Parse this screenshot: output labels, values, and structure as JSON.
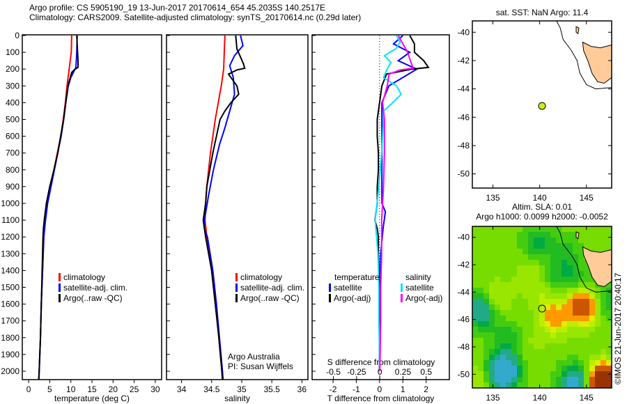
{
  "title_line1": "Argo profile: CS 5905190_19 13-Jun-2017 20170614_654 45.2035S 140.2517E",
  "title_line2": "Climatology: CARS2009. Satellite-adjusted climatology: synTS_20170614.nc (0.29d later)",
  "credit": "Argo Australia",
  "pi": "PI: Susan Wijffels",
  "stamp": "©IMOS 21-Jun-2017 20:40:17",
  "colors": {
    "climatology": "#ff0000",
    "satellite": "#0000ff",
    "argo": "#000000",
    "sal_satellite": "#00e5ff",
    "sal_argo": "#ff00ff",
    "land": "#ffcc99"
  },
  "chart_data": [
    {
      "type": "line",
      "name": "temperature",
      "xlabel": "temperature (deg C)",
      "xlim": [
        -1.5,
        31.5
      ],
      "ylim": [
        2050,
        0
      ],
      "xticks": [
        "0",
        "5",
        "10",
        "15",
        "20",
        "25",
        "30"
      ],
      "xtickvals": [
        0,
        5,
        10,
        15,
        20,
        25,
        30
      ],
      "yticks": [
        "0",
        "100",
        "200",
        "300",
        "400",
        "500",
        "600",
        "700",
        "800",
        "900",
        "1000",
        "1100",
        "1200",
        "1300",
        "1400",
        "1500",
        "1600",
        "1700",
        "1800",
        "1900",
        "2000"
      ],
      "legend": [
        "climatology",
        "satellite-adj. clim.",
        "Argo(..raw -QC)"
      ],
      "series": [
        {
          "name": "climatology",
          "color": "#ff0000",
          "depth": [
            0,
            100,
            200,
            300,
            400,
            500,
            600,
            700,
            800,
            900,
            1000,
            1100,
            1200,
            1400,
            1600,
            1800,
            2000,
            2050
          ],
          "values": [
            10.2,
            10.1,
            9.6,
            9.1,
            8.7,
            8.2,
            7.6,
            6.8,
            6,
            5.2,
            4.4,
            3.9,
            3.6,
            3.3,
            3,
            2.8,
            2.5,
            2.4
          ]
        },
        {
          "name": "satellite-adj. clim.",
          "color": "#0000ff",
          "depth": [
            0,
            100,
            190,
            250,
            300,
            400,
            500,
            600,
            700,
            800,
            900,
            1000,
            1100,
            1200,
            1400,
            1600,
            1800,
            2000,
            2050
          ],
          "values": [
            11.5,
            11.4,
            11.2,
            10,
            9.4,
            8.8,
            8.3,
            7.7,
            6.9,
            6.1,
            5.3,
            4.5,
            4,
            3.6,
            3.3,
            3,
            2.8,
            2.5,
            2.4
          ]
        },
        {
          "name": "Argo(..raw -QC)",
          "color": "#000000",
          "depth": [
            0,
            50,
            100,
            150,
            190,
            200,
            220,
            300,
            400,
            500,
            600,
            700,
            800,
            900,
            1000,
            1100,
            1150,
            1200,
            1400,
            1600,
            1800,
            2000,
            2050
          ],
          "values": [
            11.4,
            11.5,
            11.6,
            11.7,
            11.7,
            11.0,
            10.2,
            9.3,
            8.8,
            8.3,
            7.6,
            6.9,
            6.0,
            5.0,
            4.2,
            3.7,
            3.5,
            3.4,
            3.2,
            3.0,
            2.8,
            2.5,
            2.4
          ]
        }
      ]
    },
    {
      "type": "line",
      "name": "salinity",
      "xlabel": "salinity",
      "xlim": [
        33.75,
        36.1
      ],
      "ylim": [
        2050,
        0
      ],
      "xticks": [
        "34",
        "34.5",
        "35",
        "35.5",
        "36"
      ],
      "xtickvals": [
        34,
        34.5,
        35,
        35.5,
        36
      ],
      "legend": [
        "climatology",
        "satellite-adj. clim.",
        "Argo(..raw -QC)"
      ],
      "series": [
        {
          "name": "climatology",
          "color": "#ff0000",
          "depth": [
            0,
            100,
            200,
            300,
            400,
            500,
            600,
            700,
            800,
            900,
            1000,
            1100,
            1200,
            1400,
            1600,
            1800,
            2000,
            2050
          ],
          "values": [
            34.72,
            34.71,
            34.7,
            34.66,
            34.61,
            34.56,
            34.52,
            34.48,
            34.45,
            34.42,
            34.4,
            34.39,
            34.42,
            34.5,
            34.57,
            34.62,
            34.67,
            34.68
          ]
        },
        {
          "name": "satellite-adj. clim.",
          "color": "#0000ff",
          "depth": [
            0,
            60,
            120,
            180,
            250,
            350,
            450,
            550,
            650,
            800,
            950,
            1100,
            1150,
            1200,
            1400,
            1600,
            1800,
            2000,
            2050
          ],
          "values": [
            34.98,
            35.02,
            34.88,
            34.8,
            34.86,
            34.88,
            34.8,
            34.72,
            34.63,
            34.53,
            34.45,
            34.38,
            34.38,
            34.43,
            34.52,
            34.58,
            34.63,
            34.68,
            34.69
          ]
        },
        {
          "name": "Argo(..raw -QC)",
          "color": "#000000",
          "depth": [
            0,
            80,
            120,
            170,
            195,
            205,
            230,
            300,
            350,
            400,
            450,
            500,
            600,
            700,
            800,
            900,
            1000,
            1100,
            1200,
            1300,
            1400,
            1600,
            1800,
            2000,
            2050
          ],
          "values": [
            34.9,
            34.92,
            34.97,
            35.03,
            35.05,
            34.92,
            34.78,
            34.92,
            34.95,
            34.82,
            34.72,
            34.64,
            34.58,
            34.52,
            34.47,
            34.42,
            34.4,
            34.36,
            34.4,
            34.45,
            34.5,
            34.56,
            34.62,
            34.67,
            34.68
          ]
        }
      ]
    },
    {
      "type": "line",
      "name": "difference",
      "xlabel": "T difference from climatology",
      "x2label": "S difference from climatology",
      "xlim": [
        -2.9,
        3.0
      ],
      "x2lim": [
        -0.73,
        0.75
      ],
      "xticks": [
        "-2",
        "-1",
        "0",
        "1",
        "2"
      ],
      "xtickvals": [
        -2,
        -1,
        0,
        1,
        2
      ],
      "x2ticks": [
        "-0.5",
        "-0.25",
        "0",
        "0.25",
        "0.5"
      ],
      "x2tickvals": [
        -0.5,
        -0.25,
        0,
        0.25,
        0.5
      ],
      "legend": {
        "temperature_title": "temperature",
        "temperature": [
          "satellite",
          "Argo(-adj)"
        ],
        "salinity_title": "salinity",
        "salinity": [
          "satellite",
          "Argo(-adj)"
        ]
      },
      "series": [
        {
          "name": "T satellite",
          "axis": "T",
          "color": "#0000ff",
          "depth": [
            0,
            50,
            100,
            150,
            200,
            300,
            400,
            500,
            700,
            900,
            1000,
            1050,
            1150,
            1300,
            1600,
            2000
          ],
          "values": [
            1.0,
            0.6,
            1.3,
            0.8,
            1.6,
            0.4,
            0.1,
            0.1,
            0.1,
            0.1,
            0.1,
            0.25,
            0.15,
            0.05,
            0.0,
            0.0
          ]
        },
        {
          "name": "T Argo(-adj)",
          "axis": "T",
          "color": "#000000",
          "depth": [
            0,
            50,
            100,
            150,
            190,
            200,
            230,
            300,
            400,
            500,
            600,
            700,
            800,
            900,
            1000,
            1100,
            1150,
            1200,
            1300,
            1500,
            1700,
            2000
          ],
          "values": [
            1.3,
            1.5,
            1.5,
            1.9,
            2.1,
            1.4,
            0.3,
            0.1,
            0.0,
            -0.1,
            -0.1,
            -0.05,
            -0.05,
            -0.1,
            -0.1,
            -0.2,
            -0.1,
            -0.05,
            -0.05,
            0.0,
            0.0,
            0.0
          ]
        },
        {
          "name": "S satellite",
          "axis": "S",
          "color": "#00e5ff",
          "depth": [
            0,
            40,
            80,
            120,
            160,
            200,
            250,
            300,
            350,
            400,
            450,
            500,
            700,
            900,
            1000,
            1100,
            1300,
            1500,
            1700,
            2000
          ],
          "values": [
            0.18,
            0.22,
            0.17,
            0.05,
            0.12,
            0.08,
            0.04,
            0.18,
            0.23,
            0.14,
            0.04,
            0.04,
            0.02,
            -0.01,
            -0.03,
            -0.05,
            -0.02,
            -0.01,
            -0.01,
            0.0
          ]
        },
        {
          "name": "S Argo(-adj)",
          "axis": "S",
          "color": "#ff00ff",
          "depth": [
            0,
            60,
            100,
            150,
            180,
            195,
            205,
            230,
            300,
            400,
            500,
            700,
            900,
            1000,
            1100,
            1300,
            1500,
            1700,
            2000
          ],
          "values": [
            0.2,
            0.26,
            0.3,
            0.33,
            0.35,
            0.36,
            0.22,
            0.1,
            0.08,
            0.03,
            0.05,
            0.05,
            0.04,
            0.03,
            0.02,
            0.02,
            0.01,
            0.01,
            0.0
          ]
        }
      ]
    },
    {
      "type": "scatter",
      "name": "sst-map",
      "title": "sat. SST: NaN Argo: 11.4",
      "xlim": [
        132.8,
        147.7
      ],
      "ylim": [
        -51,
        -39.2
      ],
      "xticks": [
        "135",
        "140",
        "145"
      ],
      "xtickvals": [
        135,
        140,
        145
      ],
      "yticks": [
        "-40",
        "-42",
        "-44",
        "-46",
        "-48",
        "-50"
      ],
      "ytickvals": [
        -40,
        -42,
        -44,
        -46,
        -48,
        -50
      ],
      "point": {
        "lon": 140.2517,
        "lat": -45.2035,
        "color": "#ccee11"
      }
    },
    {
      "type": "heatmap",
      "name": "sla-map",
      "title": "Altim. SLA: 0.01",
      "subtitle": "Argo h1000: 0.0099 h2000: -0.0052",
      "xlim": [
        132.8,
        147.7
      ],
      "ylim": [
        -51,
        -39.2
      ],
      "xticks": [
        "135",
        "140",
        "145"
      ],
      "xtickvals": [
        135,
        140,
        145
      ],
      "yticks": [
        "-40",
        "-42",
        "-44",
        "-46",
        "-48",
        "-50"
      ],
      "ytickvals": [
        -40,
        -42,
        -44,
        -46,
        -48,
        -50
      ],
      "point": {
        "lon": 140.2517,
        "lat": -45.2035
      }
    }
  ]
}
